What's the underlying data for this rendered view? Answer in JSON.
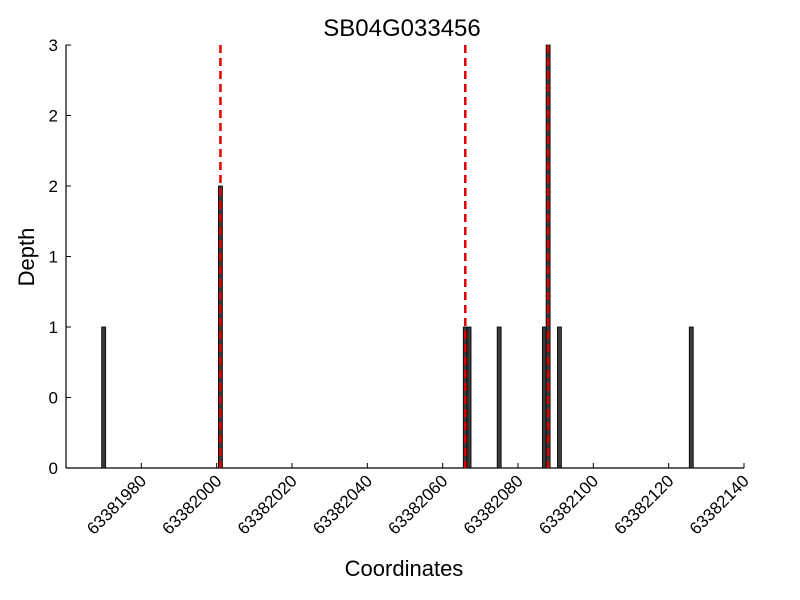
{
  "chart_data": {
    "type": "bar",
    "title": "SB04G033456",
    "xlabel": "Coordinates",
    "ylabel": "Depth",
    "xlim": [
      63381960,
      63382140
    ],
    "ylim": [
      0,
      3
    ],
    "x_ticks": [
      63381980,
      63382000,
      63382020,
      63382040,
      63382060,
      63382080,
      63382100,
      63382120,
      63382140
    ],
    "y_ticks": [
      0,
      0.5,
      1,
      1.5,
      2,
      2.5,
      3
    ],
    "y_tick_labels": [
      "0",
      "0",
      "1",
      "1",
      "2",
      "2",
      "3"
    ],
    "bars": [
      {
        "x": 63381970,
        "depth": 1
      },
      {
        "x": 63382001,
        "depth": 2
      },
      {
        "x": 63382066,
        "depth": 1
      },
      {
        "x": 63382067,
        "depth": 1
      },
      {
        "x": 63382075,
        "depth": 1
      },
      {
        "x": 63382087,
        "depth": 1
      },
      {
        "x": 63382088,
        "depth": 3
      },
      {
        "x": 63382091,
        "depth": 1
      },
      {
        "x": 63382126,
        "depth": 1
      }
    ],
    "markers": [
      63382001,
      63382066,
      63382088
    ],
    "marker_color": "#e00000",
    "bar_color": "#3a3a3a",
    "grid": false
  }
}
